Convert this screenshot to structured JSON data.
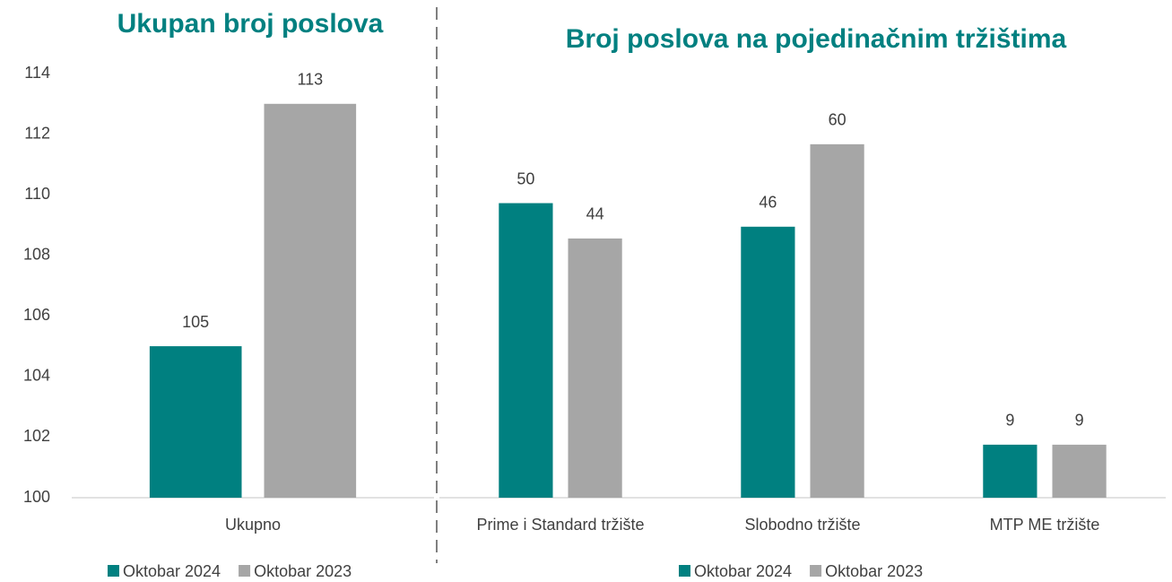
{
  "chart_data": [
    {
      "type": "bar",
      "title": "Ukupan broj poslova",
      "categories": [
        "Ukupno"
      ],
      "series": [
        {
          "name": "Oktobar 2024",
          "color": "#008080",
          "values": [
            105
          ]
        },
        {
          "name": "Oktobar 2023",
          "color": "#a6a6a6",
          "values": [
            113
          ]
        }
      ],
      "ylim": [
        100,
        114
      ],
      "yticks": [
        100,
        102,
        104,
        106,
        108,
        110,
        112,
        114
      ]
    },
    {
      "type": "bar",
      "title": "Broj poslova na pojedinačnim tržištima",
      "categories": [
        "Prime i Standard tržište",
        "Slobodno tržište",
        "MTP ME tržište"
      ],
      "series": [
        {
          "name": "Oktobar 2024",
          "color": "#008080",
          "values": [
            50,
            46,
            9
          ]
        },
        {
          "name": "Oktobar 2023",
          "color": "#a6a6a6",
          "values": [
            44,
            60,
            9
          ]
        }
      ],
      "ylim": [
        0,
        72
      ]
    }
  ]
}
